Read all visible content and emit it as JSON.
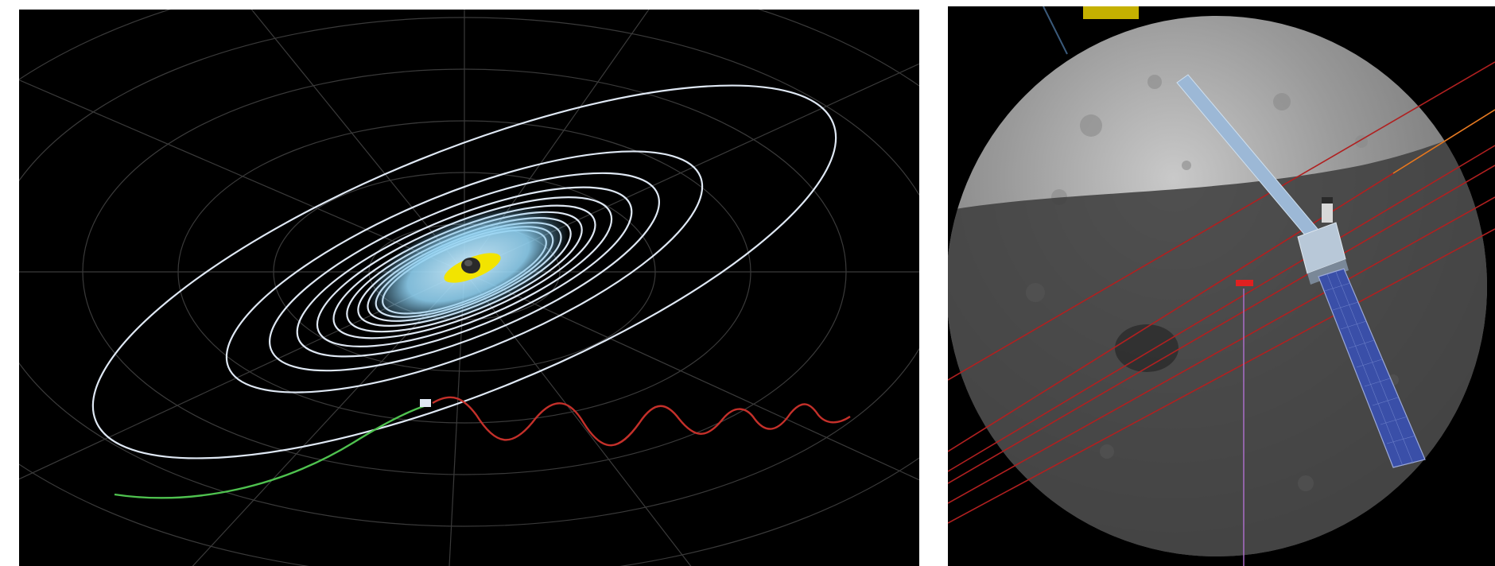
{
  "left_view": {
    "spacecraft_label": "",
    "colors": {
      "background": "#000000",
      "grid": "#3a3a3a",
      "orbit_rings": "#dfe8f4",
      "inner_orbit_cloud": "#8fd0f0",
      "central_body_band": "#f2e400",
      "approach_trajectory": "#4fc24f",
      "transfer_trajectory": "#c4302a"
    },
    "icons": [
      "central-body-icon",
      "spacecraft-marker-icon"
    ]
  },
  "right_view": {
    "body_label": "",
    "hud_line1": "",
    "hud_line2": "",
    "colors": {
      "background": "#000000",
      "moon_lit": "#9c9c9c",
      "moon_shadow": "#3f3f3f",
      "orbit_lines": "#b02020",
      "solar_panel": "#3a4fa8",
      "boom": "#9cb8d6",
      "marker": "#e02020",
      "nadir_line": "#b070d0"
    },
    "icons": [
      "spacecraft-icon",
      "solar-panel-icon",
      "marker-icon"
    ]
  }
}
